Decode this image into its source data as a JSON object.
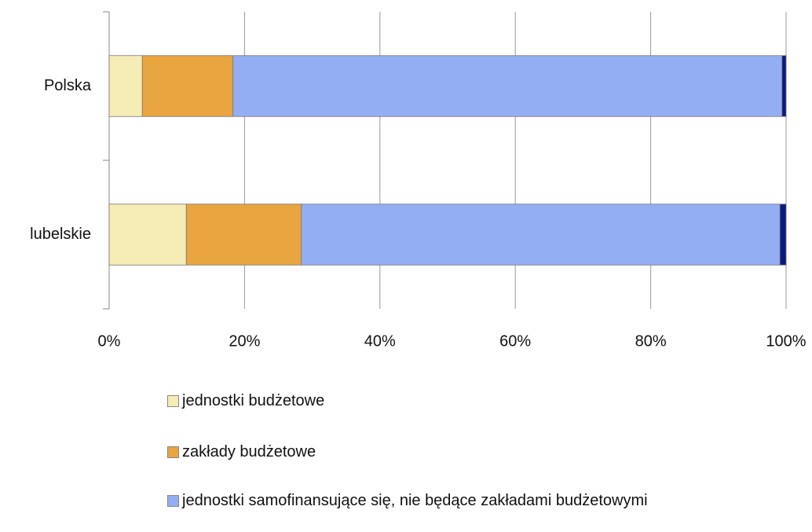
{
  "chart_data": {
    "type": "stacked_barh",
    "categories": [
      "Polska",
      "lubelskie"
    ],
    "series": [
      {
        "name": "jednostki budżetowe",
        "color": "#f6ecb6",
        "values": [
          4.9,
          11.4
        ]
      },
      {
        "name": "zakłady budżetowe",
        "color": "#e9a53f",
        "values": [
          13.4,
          17.0
        ]
      },
      {
        "name": "jednostki samofinansujące się, nie będące zakładami budżetowymi",
        "color": "#94aef4",
        "values": [
          81.1,
          70.7
        ]
      },
      {
        "color": "#0a1a7a",
        "values": [
          0.6,
          0.9
        ]
      }
    ],
    "xlim": [
      0,
      100
    ],
    "xticks": [
      {
        "value": 0,
        "label": "0%"
      },
      {
        "value": 20,
        "label": "20%"
      },
      {
        "value": 40,
        "label": "40%"
      },
      {
        "value": 60,
        "label": "60%"
      },
      {
        "value": 80,
        "label": "80%"
      },
      {
        "value": 100,
        "label": "100%"
      }
    ],
    "grid": true
  }
}
